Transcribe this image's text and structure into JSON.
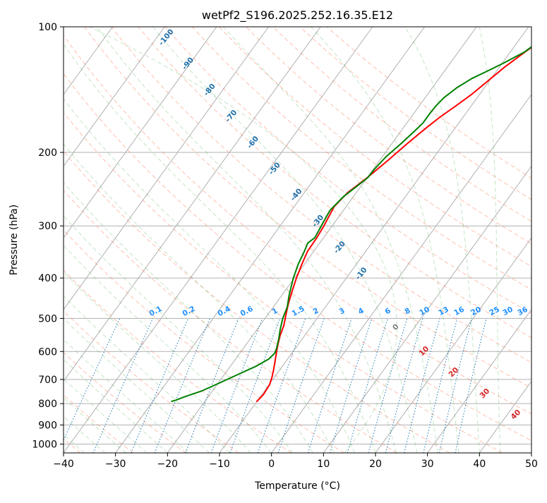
{
  "chart_data": {
    "type": "line",
    "title": "wetPf2_S196.2025.252.16.35.E12",
    "xlabel": "Temperature (°C)",
    "ylabel": "Pressure (hPa)",
    "xlim": [
      -40,
      50
    ],
    "ylim": [
      1050,
      100
    ],
    "y_scale": "log",
    "grid": true,
    "x_ticks": [
      -40,
      -30,
      -20,
      -10,
      0,
      10,
      20,
      30,
      40,
      50
    ],
    "y_ticks": [
      1000,
      900,
      800,
      700,
      600,
      500,
      400,
      300,
      200,
      100
    ],
    "dry_adiabat_labels": [
      -100,
      -90,
      -80,
      -70,
      -60,
      -50,
      -40,
      -30,
      -20,
      -10
    ],
    "moist_adiabat_labels": [
      0,
      10,
      20,
      30,
      40
    ],
    "mixing_ratio_labels": [
      "0.1",
      "0.2",
      "0.4",
      "0.6",
      "1",
      "1.5",
      "2",
      "3",
      "4",
      "6",
      "8",
      "10",
      "13",
      "16",
      "20",
      "25",
      "30",
      "36"
    ],
    "mixing_ratio_values": [
      0.1,
      0.2,
      0.4,
      0.6,
      1,
      1.5,
      2,
      3,
      4,
      6,
      8,
      10,
      13,
      16,
      20,
      25,
      30,
      36
    ],
    "series": [
      {
        "color": "#ff0000",
        "points": [
          [
            -10.0,
            790
          ],
          [
            -9.7,
            760
          ],
          [
            -9.9,
            720
          ],
          [
            -10.5,
            690
          ],
          [
            -11.3,
            660
          ],
          [
            -12.2,
            630
          ],
          [
            -13.0,
            605
          ],
          [
            -13.8,
            580
          ],
          [
            -14.7,
            550
          ],
          [
            -15.4,
            520
          ],
          [
            -16.5,
            490
          ],
          [
            -17.6,
            460
          ],
          [
            -18.6,
            430
          ],
          [
            -19.6,
            400
          ],
          [
            -20.5,
            370
          ],
          [
            -21.2,
            345
          ],
          [
            -21.3,
            320
          ],
          [
            -21.6,
            300
          ],
          [
            -22.3,
            270
          ],
          [
            -21.7,
            250
          ],
          [
            -20.0,
            230
          ],
          [
            -18.5,
            210
          ],
          [
            -17.0,
            190
          ],
          [
            -15.6,
            175
          ],
          [
            -14.5,
            165
          ],
          [
            -13.0,
            155
          ],
          [
            -11.5,
            145
          ],
          [
            -10.3,
            135
          ],
          [
            -9.0,
            125
          ],
          [
            -7.2,
            115
          ],
          [
            -5.5,
            107
          ],
          [
            -4.3,
            100
          ]
        ]
      },
      {
        "color": "#008000",
        "points": [
          [
            -26.4,
            790
          ],
          [
            -25.8,
            785
          ],
          [
            -24.5,
            770
          ],
          [
            -22.0,
            745
          ],
          [
            -19.5,
            710
          ],
          [
            -17.3,
            680
          ],
          [
            -15.0,
            650
          ],
          [
            -13.6,
            625
          ],
          [
            -13.3,
            605
          ],
          [
            -13.6,
            590
          ],
          [
            -14.5,
            560
          ],
          [
            -15.6,
            530
          ],
          [
            -16.6,
            500
          ],
          [
            -17.3,
            470
          ],
          [
            -18.6,
            440
          ],
          [
            -20.2,
            400
          ],
          [
            -21.2,
            370
          ],
          [
            -21.8,
            345
          ],
          [
            -22.3,
            330
          ],
          [
            -21.7,
            320
          ],
          [
            -22.2,
            295
          ],
          [
            -22.6,
            275
          ],
          [
            -21.9,
            255
          ],
          [
            -20.7,
            240
          ],
          [
            -19.9,
            230
          ],
          [
            -19.8,
            220
          ],
          [
            -19.3,
            205
          ],
          [
            -18.2,
            190
          ],
          [
            -17.4,
            178
          ],
          [
            -16.9,
            170
          ],
          [
            -16.9,
            162
          ],
          [
            -16.8,
            155
          ],
          [
            -16.4,
            148
          ],
          [
            -15.3,
            140
          ],
          [
            -13.7,
            133
          ],
          [
            -11.5,
            127
          ],
          [
            -9.7,
            122
          ],
          [
            -7.3,
            115
          ],
          [
            -5.7,
            107
          ],
          [
            -4.8,
            100
          ]
        ]
      }
    ]
  }
}
